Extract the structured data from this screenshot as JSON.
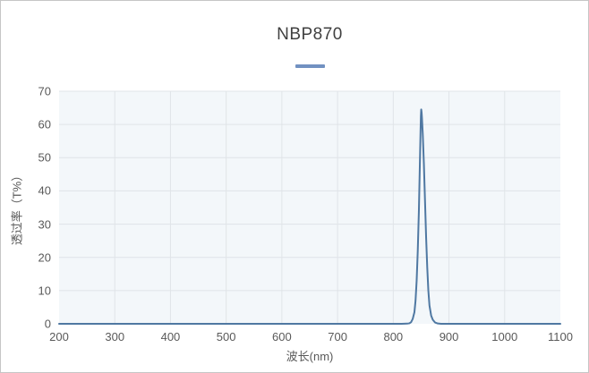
{
  "window": {
    "background": "#ffffff",
    "border_color": "#c6c6c6"
  },
  "chart_data": {
    "type": "line",
    "title": "NBP870",
    "xlabel": "波长(nm)",
    "ylabel": "透过率（T%）",
    "xlim": [
      200,
      1100
    ],
    "ylim": [
      0,
      70
    ],
    "x_ticks": [
      200,
      300,
      400,
      500,
      600,
      700,
      800,
      900,
      1000,
      1100
    ],
    "y_ticks": [
      0,
      10,
      20,
      30,
      40,
      50,
      60,
      70
    ],
    "grid": true,
    "legend_position": "top-center",
    "legend_has_text": false,
    "peak": {
      "wavelength": 850,
      "transmittance": 64.5
    },
    "series": [
      {
        "name": "NBP870",
        "points": [
          [
            200,
            0
          ],
          [
            250,
            0
          ],
          [
            300,
            0
          ],
          [
            350,
            0
          ],
          [
            400,
            0
          ],
          [
            450,
            0
          ],
          [
            500,
            0
          ],
          [
            550,
            0
          ],
          [
            600,
            0
          ],
          [
            650,
            0
          ],
          [
            700,
            0
          ],
          [
            750,
            0
          ],
          [
            790,
            0
          ],
          [
            815,
            0
          ],
          [
            825,
            0.05
          ],
          [
            829,
            0.15
          ],
          [
            832,
            0.5
          ],
          [
            835,
            1.5
          ],
          [
            838,
            3.5
          ],
          [
            840,
            7
          ],
          [
            842,
            13
          ],
          [
            844,
            22
          ],
          [
            846,
            34
          ],
          [
            847.5,
            46
          ],
          [
            849,
            58
          ],
          [
            849.6,
            62.5
          ],
          [
            850.2,
            64.5
          ],
          [
            850.9,
            63.6
          ],
          [
            851.5,
            62
          ],
          [
            853,
            57
          ],
          [
            855,
            48
          ],
          [
            857,
            37
          ],
          [
            859,
            26
          ],
          [
            861,
            17
          ],
          [
            863,
            10
          ],
          [
            865,
            5.5
          ],
          [
            868,
            2.5
          ],
          [
            871,
            1.2
          ],
          [
            875,
            0.4
          ],
          [
            880,
            0.1
          ],
          [
            886,
            0
          ],
          [
            900,
            0
          ],
          [
            950,
            0
          ],
          [
            1000,
            0
          ],
          [
            1050,
            0
          ],
          [
            1100,
            0
          ]
        ]
      }
    ]
  },
  "style": {
    "line_color": "#4f78a2",
    "legend_color": "#7191c1",
    "plot_bg": "#f3f7fa",
    "grid_color": "#e0e4e8",
    "label_color": "#595959",
    "title_color": "#404040"
  }
}
